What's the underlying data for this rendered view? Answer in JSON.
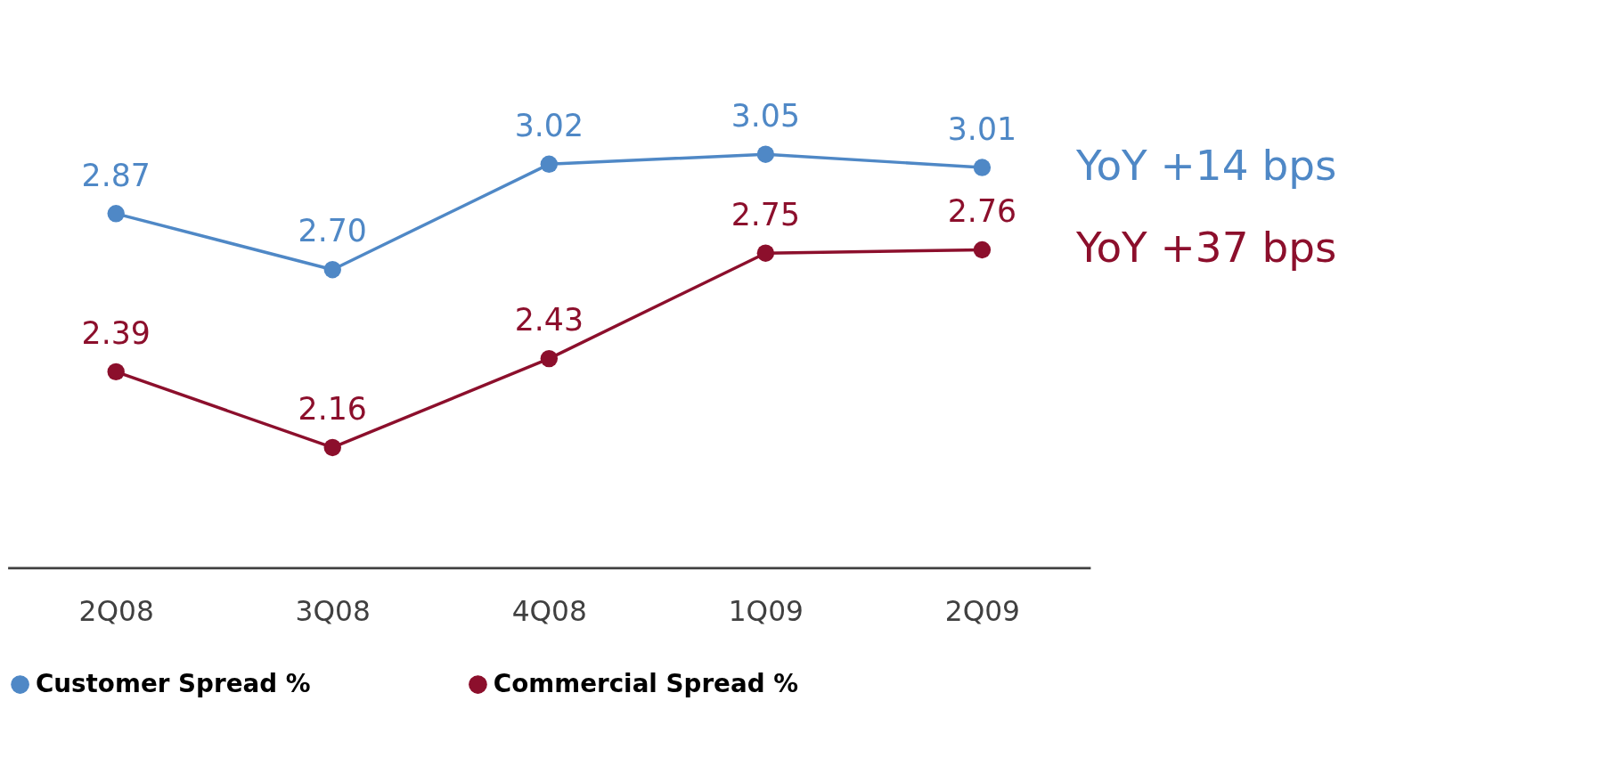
{
  "chart_data": {
    "type": "line",
    "categories": [
      "2Q08",
      "3Q08",
      "4Q08",
      "1Q09",
      "2Q09"
    ],
    "series": [
      {
        "name": "Customer Spread %",
        "color": "#4f88c6",
        "values": [
          2.87,
          2.7,
          3.02,
          3.05,
          3.01
        ],
        "value_labels": [
          "2.87",
          "2.70",
          "3.02",
          "3.05",
          "3.01"
        ]
      },
      {
        "name": "Commercial Spread %",
        "color": "#8c0f2c",
        "values": [
          2.39,
          2.16,
          2.43,
          2.75,
          2.76
        ],
        "value_labels": [
          "2.39",
          "2.16",
          "2.43",
          "2.75",
          "2.76"
        ]
      }
    ],
    "annotations": [
      "YoY +14 bps",
      "YoY +37 bps"
    ],
    "marker": "circle",
    "line_style": "solid",
    "legend": "bottom",
    "grid": false
  }
}
